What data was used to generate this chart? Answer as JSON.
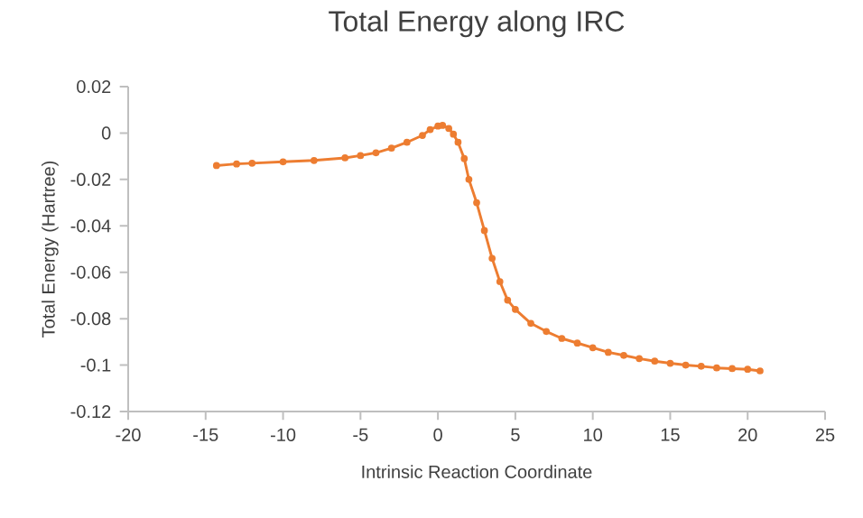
{
  "chart_data": {
    "type": "line",
    "title": "Total Energy along IRC",
    "xlabel": "Intrinsic Reaction Coordinate",
    "ylabel": "Total Energy (Hartree)",
    "xlim": [
      -20,
      25
    ],
    "xticks": [
      -20,
      -15,
      -10,
      -5,
      0,
      5,
      10,
      15,
      20,
      25
    ],
    "ylim": [
      -0.12,
      0.02
    ],
    "yticks": [
      -0.12,
      -0.1,
      -0.08,
      -0.06,
      -0.04,
      -0.02,
      0,
      0.02
    ],
    "marker": "circle",
    "line_style": "solid",
    "series": [
      {
        "color": "#ed7d31",
        "x": [
          -14.3,
          -13,
          -12,
          -10,
          -8,
          -6,
          -5,
          -4,
          -3,
          -2,
          -1,
          -0.5,
          0,
          0.3,
          0.7,
          1,
          1.3,
          1.7,
          2,
          2.5,
          3,
          3.5,
          4,
          4.5,
          5,
          6,
          7,
          8,
          9,
          10,
          11,
          12,
          13,
          14,
          15,
          16,
          17,
          18,
          19,
          20,
          20.8
        ],
        "values": [
          -0.014,
          -0.0133,
          -0.013,
          -0.0124,
          -0.0118,
          -0.0107,
          -0.0097,
          -0.0085,
          -0.0065,
          -0.004,
          -0.001,
          0.0015,
          0.003,
          0.0033,
          0.002,
          -0.0005,
          -0.004,
          -0.011,
          -0.02,
          -0.03,
          -0.042,
          -0.054,
          -0.064,
          -0.072,
          -0.076,
          -0.082,
          -0.0855,
          -0.0885,
          -0.0905,
          -0.0925,
          -0.0945,
          -0.0958,
          -0.0972,
          -0.0983,
          -0.0992,
          -0.1,
          -0.1005,
          -0.1012,
          -0.1015,
          -0.1018,
          -0.1025
        ]
      }
    ]
  }
}
